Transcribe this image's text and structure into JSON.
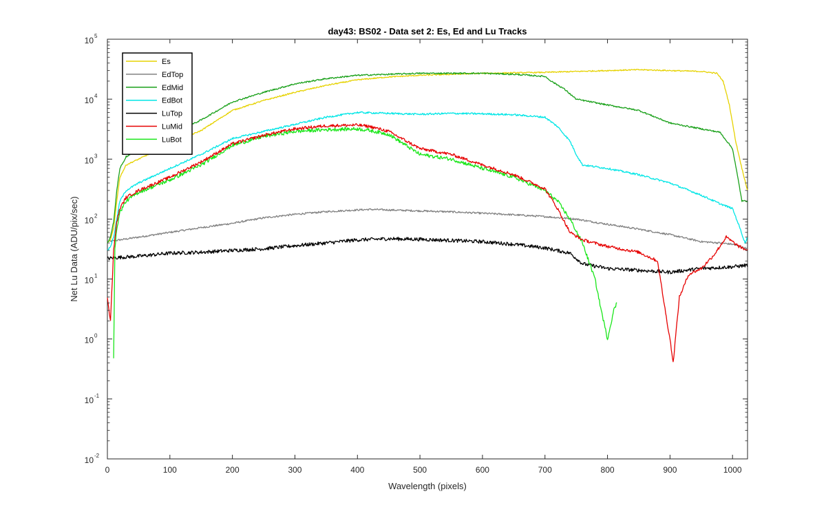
{
  "chart_data": {
    "type": "line",
    "title": "day43: BS02 - Data set 2: Es, Ed and Lu Tracks",
    "xlabel": "Wavelength (pixels)",
    "ylabel": "Net Lu Data (ADU/pix/sec)",
    "xlim": [
      0,
      1024
    ],
    "ylim": [
      0.01,
      100000
    ],
    "yscale": "log",
    "legend_position": "top-left",
    "x_ticks": [
      0,
      100,
      200,
      300,
      400,
      500,
      600,
      700,
      800,
      900,
      1000
    ],
    "x_tick_labels": [
      "0",
      "100",
      "200",
      "300",
      "400",
      "500",
      "600",
      "700",
      "800",
      "900",
      "1000"
    ],
    "y_ticks": [
      0.01,
      0.1,
      1,
      10,
      100,
      1000,
      10000,
      100000
    ],
    "y_tick_base": "10",
    "y_tick_exponents": [
      "-2",
      "-1",
      "0",
      "1",
      "2",
      "3",
      "4",
      "5"
    ],
    "grid": false,
    "series": [
      {
        "name": "Es",
        "color": "#e6d200",
        "x": [
          0,
          5,
          10,
          15,
          20,
          30,
          50,
          100,
          150,
          200,
          250,
          300,
          350,
          400,
          450,
          500,
          550,
          600,
          650,
          700,
          750,
          800,
          850,
          900,
          950,
          975,
          985,
          995,
          1005,
          1015,
          1024
        ],
        "y": [
          40,
          45,
          70,
          200,
          500,
          800,
          1000,
          1800,
          3000,
          6500,
          9500,
          13000,
          17000,
          21000,
          23500,
          25000,
          26000,
          27000,
          27500,
          28000,
          29000,
          30000,
          31000,
          30000,
          29000,
          27000,
          20000,
          8000,
          2000,
          700,
          300
        ]
      },
      {
        "name": "EdTop",
        "color": "#808080",
        "x": [
          0,
          20,
          50,
          100,
          150,
          200,
          250,
          300,
          350,
          400,
          420,
          450,
          500,
          550,
          600,
          650,
          700,
          750,
          800,
          850,
          900,
          950,
          980,
          1000,
          1024
        ],
        "y": [
          42,
          45,
          50,
          60,
          72,
          85,
          105,
          120,
          133,
          142,
          145,
          142,
          137,
          132,
          125,
          118,
          110,
          100,
          82,
          68,
          55,
          42,
          40,
          38,
          32
        ]
      },
      {
        "name": "EdMid",
        "color": "#19a019",
        "x": [
          0,
          5,
          10,
          15,
          20,
          30,
          50,
          100,
          150,
          200,
          250,
          300,
          350,
          400,
          450,
          500,
          550,
          600,
          650,
          700,
          710,
          730,
          750,
          800,
          850,
          900,
          950,
          980,
          1000,
          1010,
          1015,
          1024
        ],
        "y": [
          40,
          50,
          90,
          300,
          700,
          1100,
          1400,
          2500,
          4500,
          9000,
          13000,
          18000,
          22000,
          25000,
          26000,
          27000,
          27000,
          27000,
          26000,
          24000,
          20000,
          15000,
          10000,
          8000,
          6500,
          4000,
          3200,
          2800,
          1500,
          400,
          200,
          200
        ]
      },
      {
        "name": "EdBot",
        "color": "#00e6e6",
        "x": [
          0,
          5,
          10,
          15,
          20,
          30,
          50,
          100,
          150,
          200,
          250,
          300,
          350,
          400,
          450,
          500,
          550,
          600,
          650,
          700,
          720,
          740,
          750,
          760,
          800,
          850,
          900,
          950,
          980,
          1000,
          1010,
          1020,
          1024
        ],
        "y": [
          30,
          35,
          50,
          100,
          200,
          300,
          400,
          700,
          1200,
          2200,
          2900,
          3800,
          5000,
          6000,
          5800,
          5600,
          5800,
          5700,
          5500,
          5000,
          3500,
          2000,
          1200,
          800,
          700,
          550,
          400,
          250,
          180,
          150,
          80,
          40,
          50
        ]
      },
      {
        "name": "LuTop",
        "color": "#000000",
        "x": [
          0,
          20,
          50,
          100,
          150,
          200,
          250,
          300,
          350,
          400,
          450,
          500,
          550,
          600,
          650,
          700,
          740,
          760,
          800,
          850,
          900,
          950,
          1000,
          1024
        ],
        "y": [
          22,
          23,
          24,
          27,
          28,
          30,
          32,
          36,
          40,
          45,
          47,
          46,
          44,
          42,
          38,
          33,
          27,
          18,
          15,
          14,
          13,
          15,
          16,
          17
        ]
      },
      {
        "name": "LuMid",
        "color": "#e60000",
        "x": [
          0,
          5,
          10,
          15,
          20,
          30,
          50,
          100,
          150,
          200,
          250,
          300,
          350,
          400,
          420,
          450,
          500,
          550,
          600,
          650,
          700,
          720,
          740,
          760,
          800,
          850,
          880,
          895,
          900,
          905,
          915,
          930,
          950,
          970,
          990,
          1010,
          1024
        ],
        "y": [
          5,
          2,
          30,
          90,
          150,
          230,
          300,
          500,
          900,
          1800,
          2500,
          3200,
          3600,
          3700,
          3500,
          2900,
          1500,
          1200,
          800,
          550,
          320,
          150,
          60,
          45,
          35,
          28,
          20,
          2,
          1,
          0.4,
          5,
          12,
          15,
          25,
          50,
          35,
          30
        ]
      },
      {
        "name": "LuBot",
        "color": "#19e619",
        "x": [
          10,
          12,
          15,
          20,
          30,
          50,
          100,
          150,
          200,
          250,
          300,
          350,
          400,
          420,
          450,
          500,
          550,
          600,
          650,
          700,
          720,
          740,
          760,
          780,
          790,
          800,
          810,
          815
        ],
        "y": [
          0.5,
          30,
          70,
          130,
          200,
          280,
          450,
          800,
          1700,
          2400,
          2900,
          3100,
          3200,
          3000,
          2600,
          1200,
          1000,
          700,
          500,
          300,
          200,
          100,
          40,
          10,
          3,
          1,
          3,
          4
        ]
      }
    ]
  }
}
